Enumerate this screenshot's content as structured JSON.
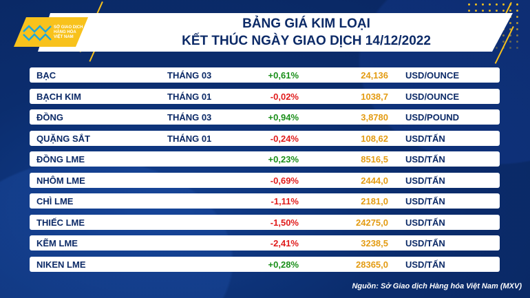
{
  "logo": {
    "text": [
      "SỞ GIAO DỊCH",
      "HÀNG HÓA",
      "VIỆT NAM"
    ]
  },
  "header": {
    "title_line1": "BẢNG GIÁ KIM LOẠI",
    "title_line2": "KẾT THÚC NGÀY GIAO DỊCH 14/12/2022"
  },
  "colors": {
    "up": "#1a8f1a",
    "down": "#e01b1b",
    "price": "#e39b12",
    "navy": "#0c2a67",
    "accent": "#f8c21c"
  },
  "rows": [
    {
      "name": "BẠC",
      "month": "THÁNG 03",
      "change": "+0,61%",
      "price": "24,136",
      "unit": "USD/OUNCE",
      "dir": "up"
    },
    {
      "name": "BẠCH KIM",
      "month": "THÁNG 01",
      "change": "-0,02%",
      "price": "1038,7",
      "unit": "USD/OUNCE",
      "dir": "down"
    },
    {
      "name": "ĐỒNG",
      "month": "THÁNG 03",
      "change": "+0,94%",
      "price": "3,8780",
      "unit": "USD/POUND",
      "dir": "up"
    },
    {
      "name": "QUẶNG SẮT",
      "month": "THÁNG 01",
      "change": "-0,24%",
      "price": "108,62",
      "unit": "USD/TẤN",
      "dir": "down"
    },
    {
      "name": "ĐỒNG LME",
      "month": "",
      "change": "+0,23%",
      "price": "8516,5",
      "unit": "USD/TẤN",
      "dir": "up"
    },
    {
      "name": "NHÔM LME",
      "month": "",
      "change": "-0,69%",
      "price": "2444,0",
      "unit": "USD/TẤN",
      "dir": "down"
    },
    {
      "name": "CHÌ LME",
      "month": "",
      "change": "-1,11%",
      "price": "2181,0",
      "unit": "USD/TẤN",
      "dir": "down"
    },
    {
      "name": "THIẾC LME",
      "month": "",
      "change": "-1,50%",
      "price": "24275,0",
      "unit": "USD/TẤN",
      "dir": "down"
    },
    {
      "name": "KẼM LME",
      "month": "",
      "change": "-2,41%",
      "price": "3238,5",
      "unit": "USD/TẤN",
      "dir": "down"
    },
    {
      "name": "NIKEN LME",
      "month": "",
      "change": "+0,28%",
      "price": "28365,0",
      "unit": "USD/TẤN",
      "dir": "up"
    }
  ],
  "footer": {
    "source": "Nguồn: Sở Giao dịch Hàng hóa Việt Nam (MXV)"
  }
}
